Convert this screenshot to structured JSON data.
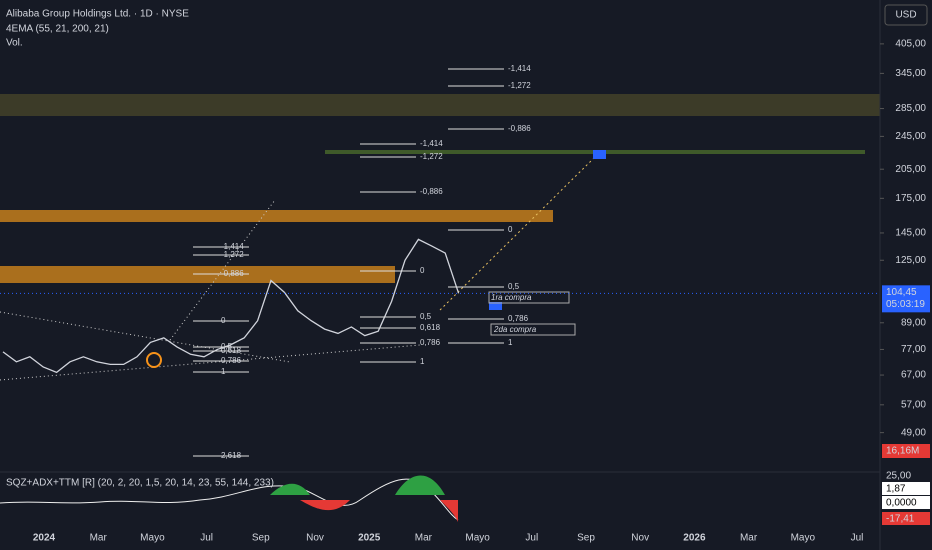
{
  "chart_data": {
    "type": "line",
    "title": "Alibaba Group Holdings Ltd. · 1D · NYSE",
    "indicators": [
      "4EMA (55, 21, 200, 21)",
      "Vol."
    ],
    "currency": "USD",
    "log_scale": true,
    "ylim": [
      40,
      514
    ],
    "yticks": [
      {
        "value": 405,
        "label": "405,00"
      },
      {
        "value": 345,
        "label": "345,00"
      },
      {
        "value": 285,
        "label": "285,00"
      },
      {
        "value": 245,
        "label": "245,00"
      },
      {
        "value": 205,
        "label": "205,00"
      },
      {
        "value": 175,
        "label": "175,00"
      },
      {
        "value": 145,
        "label": "145,00"
      },
      {
        "value": 125,
        "label": "125,00"
      },
      {
        "value": 89,
        "label": "89,00"
      },
      {
        "value": 77,
        "label": "77,00"
      },
      {
        "value": 67,
        "label": "67,00"
      },
      {
        "value": 57,
        "label": "57,00"
      },
      {
        "value": 49,
        "label": "49,00"
      }
    ],
    "x_labels": [
      "2024",
      "Mar",
      "Mayo",
      "Jul",
      "Sep",
      "Nov",
      "2025",
      "Mar",
      "Mayo",
      "Jul",
      "Sep",
      "Nov",
      "2026",
      "Mar",
      "Mayo",
      "Jul"
    ],
    "values": [
      76,
      72,
      74,
      70,
      68,
      72,
      74,
      72,
      71,
      71,
      74,
      80,
      82,
      78,
      75,
      74,
      77,
      79,
      82,
      90,
      112,
      105,
      95,
      90,
      86,
      84,
      87,
      83,
      85,
      100,
      125,
      140,
      135,
      130,
      104.45
    ],
    "color": "#d1d4dc",
    "last_price": {
      "value": 104.45,
      "label": "104,45"
    },
    "countdown": "05:03:19",
    "volume_label": "16,16M",
    "oscillator": {
      "title": "SQZ+ADX+TTM [R] (20, 2, 20, 1,5, 20, 14, 23, 55, 144, 233)",
      "labels": [
        "25,00",
        "1,87",
        "0,0000",
        "-17,41"
      ]
    },
    "fib_labels": [
      "-1,414",
      "-1,272",
      "-0,886",
      "0",
      "0,5",
      "0,786",
      "1",
      "-1,414",
      "-1,272",
      "-0,886",
      "0",
      "0,5",
      "0,618",
      "0,786",
      "1",
      "-1,414",
      "-1,272",
      "-0,886",
      "0",
      "0,5",
      "0,618",
      "0,786",
      "1",
      "2,618"
    ],
    "notes": [
      "1ra compra",
      "2da compra"
    ]
  }
}
